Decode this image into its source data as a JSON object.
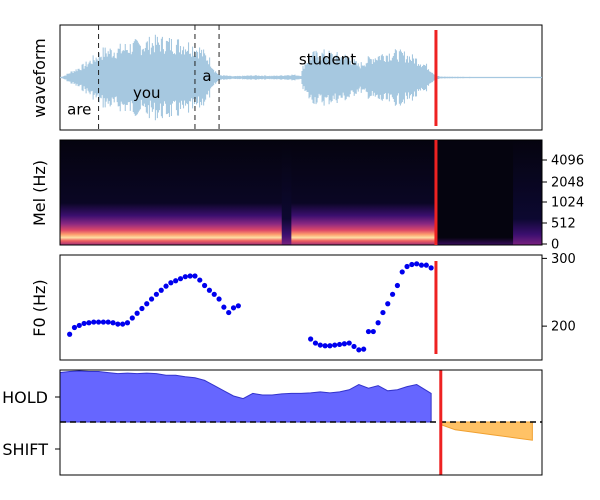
{
  "figure_type": "multi-panel speech visualization",
  "colors": {
    "waveform": "#a6c8e0",
    "marker": "#ee2222",
    "wordline": "#222222",
    "f0_points": "#0000ee",
    "hold_fill": "#6666ff",
    "hold_edge": "#3333cc",
    "shift_fill": "#ffc266",
    "shift_edge": "#f0a030"
  },
  "chart_data": [
    {
      "type": "area",
      "name": "waveform",
      "ylabel": "waveform",
      "xlim": [
        0,
        1
      ],
      "ylim": [
        -1,
        1
      ],
      "marker_x": 0.78,
      "word_boundaries": [
        0.08,
        0.28,
        0.33
      ],
      "words": [
        {
          "text": "are",
          "x": 0.04,
          "y": -0.65
        },
        {
          "text": "you",
          "x": 0.18,
          "y": -0.3
        },
        {
          "text": "a",
          "x": 0.305,
          "y": 0.05
        },
        {
          "text": "student",
          "x": 0.555,
          "y": 0.4
        }
      ],
      "envelope_x": [
        0.0,
        0.01,
        0.02,
        0.05,
        0.09,
        0.12,
        0.15,
        0.18,
        0.2,
        0.22,
        0.25,
        0.27,
        0.29,
        0.31,
        0.32,
        0.33,
        0.35,
        0.36,
        0.38,
        0.4,
        0.42,
        0.44,
        0.46,
        0.48,
        0.5,
        0.505,
        0.52,
        0.55,
        0.57,
        0.6,
        0.62,
        0.64,
        0.66,
        0.68,
        0.7,
        0.72,
        0.74,
        0.76,
        0.78,
        0.79,
        1.0
      ],
      "envelope_amp": [
        0.0,
        0.05,
        0.12,
        0.3,
        0.65,
        0.7,
        0.8,
        0.85,
        0.9,
        0.88,
        0.85,
        0.8,
        0.7,
        0.45,
        0.2,
        0.06,
        0.04,
        0.03,
        0.04,
        0.05,
        0.05,
        0.04,
        0.05,
        0.07,
        0.05,
        0.3,
        0.55,
        0.6,
        0.55,
        0.5,
        0.3,
        0.45,
        0.55,
        0.6,
        0.6,
        0.55,
        0.45,
        0.3,
        0.05,
        0.02,
        0.0
      ]
    },
    {
      "type": "heatmap",
      "name": "mel_spectrogram",
      "ylabel": "Mel (Hz)",
      "tick_labels": [
        "4096",
        "2048",
        "1024",
        "512",
        "0"
      ],
      "tick_values": [
        4096,
        2048,
        1024,
        512,
        0
      ],
      "marker_x": 0.78,
      "bands": [
        {
          "x0": 0.0,
          "x1": 0.46,
          "level": "high"
        },
        {
          "x0": 0.46,
          "x1": 0.48,
          "level": "low"
        },
        {
          "x0": 0.48,
          "x1": 0.78,
          "level": "high"
        },
        {
          "x0": 0.78,
          "x1": 0.94,
          "level": "none"
        },
        {
          "x0": 0.94,
          "x1": 1.0,
          "level": "low"
        }
      ]
    },
    {
      "type": "scatter",
      "name": "f0",
      "ylabel": "F0 (Hz)",
      "ylim": [
        150,
        305
      ],
      "yticks": [
        200,
        300
      ],
      "marker_x": 0.78,
      "x": [
        0.02,
        0.03,
        0.04,
        0.05,
        0.06,
        0.07,
        0.08,
        0.09,
        0.1,
        0.11,
        0.12,
        0.13,
        0.14,
        0.15,
        0.16,
        0.17,
        0.18,
        0.19,
        0.2,
        0.21,
        0.22,
        0.23,
        0.24,
        0.25,
        0.26,
        0.27,
        0.28,
        0.29,
        0.3,
        0.31,
        0.32,
        0.33,
        0.34,
        0.35,
        0.36,
        0.37,
        0.52,
        0.53,
        0.54,
        0.55,
        0.56,
        0.57,
        0.58,
        0.59,
        0.6,
        0.61,
        0.62,
        0.63,
        0.64,
        0.65,
        0.66,
        0.67,
        0.68,
        0.69,
        0.7,
        0.71,
        0.72,
        0.73,
        0.74,
        0.75,
        0.76,
        0.77
      ],
      "y": [
        188,
        198,
        201,
        204,
        205,
        206,
        206,
        206,
        206,
        205,
        203,
        203,
        205,
        212,
        219,
        226,
        233,
        240,
        247,
        253,
        259,
        264,
        267,
        270,
        273,
        274,
        274,
        268,
        260,
        253,
        247,
        240,
        228,
        220,
        227,
        230,
        181,
        175,
        172,
        171,
        171,
        172,
        173,
        174,
        175,
        170,
        165,
        166,
        192,
        192,
        205,
        220,
        233,
        247,
        260,
        280,
        288,
        291,
        292,
        290,
        290,
        286
      ]
    },
    {
      "type": "area",
      "name": "hold_shift",
      "yticks": [
        "HOLD",
        "SHIFT"
      ],
      "ylim": [
        -1,
        1
      ],
      "zero_line": 0,
      "marker_x": 0.79,
      "hold_x": [
        0.0,
        0.02,
        0.04,
        0.06,
        0.08,
        0.1,
        0.12,
        0.14,
        0.16,
        0.18,
        0.2,
        0.22,
        0.24,
        0.26,
        0.28,
        0.3,
        0.32,
        0.34,
        0.36,
        0.38,
        0.4,
        0.42,
        0.44,
        0.46,
        0.48,
        0.5,
        0.52,
        0.54,
        0.56,
        0.58,
        0.6,
        0.62,
        0.64,
        0.66,
        0.68,
        0.7,
        0.72,
        0.74,
        0.77
      ],
      "hold_y": [
        0.95,
        0.97,
        0.98,
        0.97,
        0.97,
        0.95,
        0.93,
        0.94,
        0.93,
        0.94,
        0.93,
        0.9,
        0.9,
        0.87,
        0.85,
        0.8,
        0.7,
        0.6,
        0.5,
        0.45,
        0.55,
        0.52,
        0.52,
        0.54,
        0.55,
        0.55,
        0.56,
        0.58,
        0.56,
        0.58,
        0.62,
        0.72,
        0.65,
        0.7,
        0.6,
        0.62,
        0.68,
        0.72,
        0.55
      ],
      "shift_x": [
        0.79,
        0.82,
        0.86,
        0.9,
        0.94,
        0.98
      ],
      "shift_y": [
        -0.05,
        -0.15,
        -0.2,
        -0.25,
        -0.3,
        -0.35
      ]
    }
  ]
}
